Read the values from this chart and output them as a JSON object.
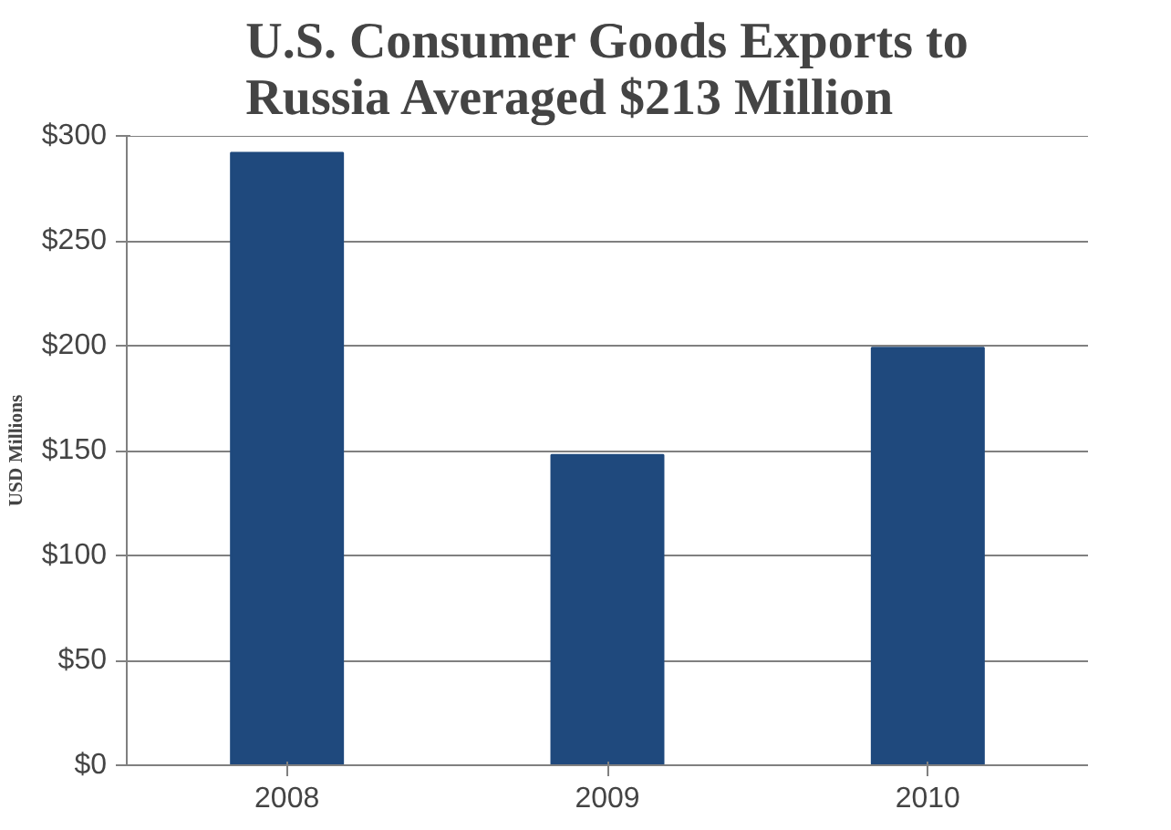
{
  "chart_data": {
    "type": "bar",
    "title": "U.S. Consumer Goods Exports to\nRussia Averaged $213 Million",
    "ylabel": "USD Millions",
    "categories": [
      "2008",
      "2009",
      "2010"
    ],
    "values": [
      292,
      148,
      199
    ],
    "color": "#1f497d",
    "ylim": [
      0,
      300
    ],
    "yticks": [
      {
        "value": 0,
        "label": "$0"
      },
      {
        "value": 50,
        "label": "$50"
      },
      {
        "value": 100,
        "label": "$100"
      },
      {
        "value": 150,
        "label": "$150"
      },
      {
        "value": 200,
        "label": "$200"
      },
      {
        "value": 250,
        "label": "$250"
      },
      {
        "value": 300,
        "label": "$300"
      }
    ],
    "grid": "y"
  }
}
